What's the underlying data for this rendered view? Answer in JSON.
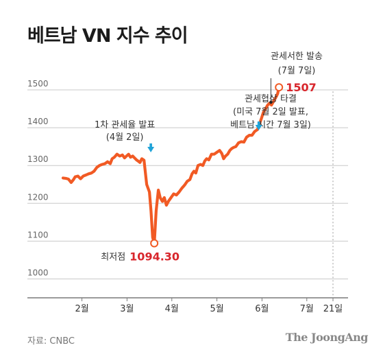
{
  "header": {
    "title": "베트남 VN 지수 추이"
  },
  "footer": {
    "source": "자료: CNBC",
    "brand": "The JoongAng"
  },
  "colors": {
    "line": "#f15a24",
    "grid": "#c8c8c8",
    "axis": "#7a7a7a",
    "text": "#333333",
    "highlight": "#d8262c",
    "arrow": "#1fa3d8"
  },
  "chart_data": {
    "type": "line",
    "title": "베트남 VN 지수 추이",
    "xlabel": "",
    "ylabel": "",
    "ylim": [
      950,
      1560
    ],
    "xlim": [
      0,
      100
    ],
    "grid": true,
    "y_ticks": [
      1000,
      1100,
      1200,
      1300,
      1400,
      1500
    ],
    "x_ticks": [
      {
        "x": 7,
        "label": "2월"
      },
      {
        "x": 23.7,
        "label": "3월"
      },
      {
        "x": 40.3,
        "label": "4월"
      },
      {
        "x": 57,
        "label": "5월"
      },
      {
        "x": 73.7,
        "label": "6월"
      },
      {
        "x": 90.3,
        "label": "7월"
      },
      {
        "x": 100,
        "label": "21일"
      }
    ],
    "series": [
      {
        "values": [
          [
            0,
            1267
          ],
          [
            1,
            1266
          ],
          [
            2,
            1264
          ],
          [
            3,
            1255
          ],
          [
            3.8,
            1262
          ],
          [
            4.5,
            1270
          ],
          [
            5.5,
            1272
          ],
          [
            6.5,
            1265
          ],
          [
            7.5,
            1272
          ],
          [
            8.5,
            1275
          ],
          [
            9.5,
            1278
          ],
          [
            10.5,
            1280
          ],
          [
            11.5,
            1285
          ],
          [
            12.5,
            1295
          ],
          [
            13.5,
            1300
          ],
          [
            14.5,
            1303
          ],
          [
            15.5,
            1305
          ],
          [
            16.5,
            1310
          ],
          [
            17.5,
            1305
          ],
          [
            18.2,
            1318
          ],
          [
            19,
            1322
          ],
          [
            20,
            1330
          ],
          [
            21,
            1325
          ],
          [
            22,
            1328
          ],
          [
            22.8,
            1320
          ],
          [
            23.5,
            1325
          ],
          [
            24.3,
            1330
          ],
          [
            25,
            1322
          ],
          [
            25.8,
            1325
          ],
          [
            26.5,
            1320
          ],
          [
            27.2,
            1315
          ],
          [
            27.8,
            1312
          ],
          [
            28.5,
            1308
          ],
          [
            29.2,
            1318
          ],
          [
            30,
            1314
          ],
          [
            31,
            1250
          ],
          [
            32,
            1230
          ],
          [
            32.6,
            1180
          ],
          [
            33.2,
            1110
          ],
          [
            33.8,
            1094.3
          ],
          [
            34.5,
            1180
          ],
          [
            35.3,
            1235
          ],
          [
            36,
            1215
          ],
          [
            36.8,
            1205
          ],
          [
            37.5,
            1215
          ],
          [
            38.3,
            1195
          ],
          [
            39,
            1205
          ],
          [
            40,
            1215
          ],
          [
            41,
            1225
          ],
          [
            42,
            1222
          ],
          [
            43,
            1230
          ],
          [
            44,
            1240
          ],
          [
            45,
            1248
          ],
          [
            46,
            1258
          ],
          [
            47,
            1263
          ],
          [
            47.8,
            1278
          ],
          [
            48.5,
            1285
          ],
          [
            49.2,
            1280
          ],
          [
            50,
            1300
          ],
          [
            51,
            1303
          ],
          [
            51.8,
            1300
          ],
          [
            52.5,
            1312
          ],
          [
            53.2,
            1318
          ],
          [
            54,
            1315
          ],
          [
            55,
            1330
          ],
          [
            56,
            1330
          ],
          [
            57,
            1335
          ],
          [
            58,
            1340
          ],
          [
            58.8,
            1332
          ],
          [
            59.5,
            1318
          ],
          [
            60.2,
            1325
          ],
          [
            61,
            1330
          ],
          [
            61.8,
            1340
          ],
          [
            62.5,
            1345
          ],
          [
            63.2,
            1348
          ],
          [
            64,
            1350
          ],
          [
            65,
            1360
          ],
          [
            66,
            1363
          ],
          [
            67,
            1362
          ],
          [
            68,
            1375
          ],
          [
            69,
            1380
          ],
          [
            70,
            1380
          ],
          [
            71,
            1390
          ],
          [
            72,
            1395
          ],
          [
            72.8,
            1410
          ],
          [
            73.5,
            1425
          ],
          [
            74.2,
            1440
          ],
          [
            75,
            1450
          ],
          [
            75.8,
            1460
          ],
          [
            76.5,
            1465
          ],
          [
            77.2,
            1460
          ],
          [
            78,
            1470
          ],
          [
            78.8,
            1480
          ],
          [
            79.5,
            1490
          ],
          [
            80,
            1507
          ]
        ]
      }
    ],
    "annotations": [
      {
        "key": "tariff_announce",
        "x": 31,
        "y": 1314,
        "lines": [
          "1차 관세율 발표",
          "(4월 2일)"
        ]
      },
      {
        "key": "tariff_negotiation",
        "x": 72.5,
        "y": 1395,
        "lines": [
          "관세협상 타결",
          "(미국 7월 2일 발표,",
          "베트남 시간 7월 3일)"
        ]
      },
      {
        "key": "tariff_letter",
        "x": 77,
        "y": 1460,
        "lines": [
          "관세서한 발송",
          "(7월 7일)"
        ]
      },
      {
        "key": "low_point",
        "x": 33.8,
        "y": 1094.3,
        "label": "최저점",
        "value": "1094.30"
      },
      {
        "key": "latest",
        "x": 80,
        "y": 1507,
        "value": "1507"
      }
    ]
  }
}
